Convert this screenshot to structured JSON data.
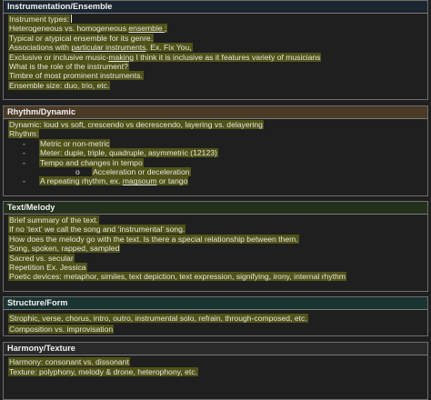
{
  "colors": {
    "background": "#1f1f1f",
    "highlight": "#4f5319",
    "header_instrumentation": "#1c2631",
    "header_rhythm": "#4a3a26",
    "header_text": "#22301c",
    "header_structure": "#1a3432",
    "header_harmony": "#2a2a2a"
  },
  "sections": {
    "instrumentation": {
      "title": "Instrumentation/Ensemble",
      "l1": "Instrument types:",
      "l2a": "Heterogeneous vs. homogeneous ",
      "l2b": "ensemble ",
      "l2c": ";",
      "l3": "Typical or atypical ensemble for its genre.",
      "l4a": "Associations with ",
      "l4b": "particular instruments",
      "l4c": ". Ex. Fix You,",
      "l5a": "Exclusive or inclusive music-",
      "l5b": "making",
      "l5c": "  I think it is inclusive as it features variety of musicians",
      "l6": "What is the role of the instrument?",
      "l7": "Timbre of most prominent instruments.",
      "l8": "Ensemble size: duo, trio, etc."
    },
    "rhythm": {
      "title": "Rhythm/Dynamic",
      "l1": "Dynamic: loud vs soft, crescendo vs decrescendo, layering vs. delayering",
      "l2": "Rhythm:",
      "dash": "-",
      "l3": "Metric or non-metric",
      "l4": "Meter: duple, triple, quadruple, asymmetric (12123)",
      "l5": "Tempo and changes in tempo",
      "bullet": "o",
      "l6": "Acceleration or deceleration",
      "l7a": "A repeating rhythm, ex. ",
      "l7b": "magsoum",
      "l7c": " or tango"
    },
    "text": {
      "title": "Text/Melody",
      "l1": "Brief summary of the text.",
      "l2": "If no ‘text’ we call the song and ‘instrumental’ song.",
      "l3": "How does the melody go with the text. Is there a special relationship between them.",
      "l4": "Song, spoken, rapped, sampled",
      "l5": "Sacred vs. secular",
      "l6": "Repetition Ex. Jessica",
      "l7": "Poetic devices: metaphor, similes, text depiction, text expression, signifying, irony, internal rhythm"
    },
    "structure": {
      "title": "Structure/Form",
      "l1": "Strophic, verse, chorus, intro, outro, instrumental solo, refrain, through-composed, etc.",
      "l2": "Composition vs. improvisation"
    },
    "harmony": {
      "title": "Harmony/Texture",
      "l1": "Harmony: consonant vs. dissonant",
      "l2": "Texture: polyphony, melody & drone, heterophony, etc."
    }
  }
}
